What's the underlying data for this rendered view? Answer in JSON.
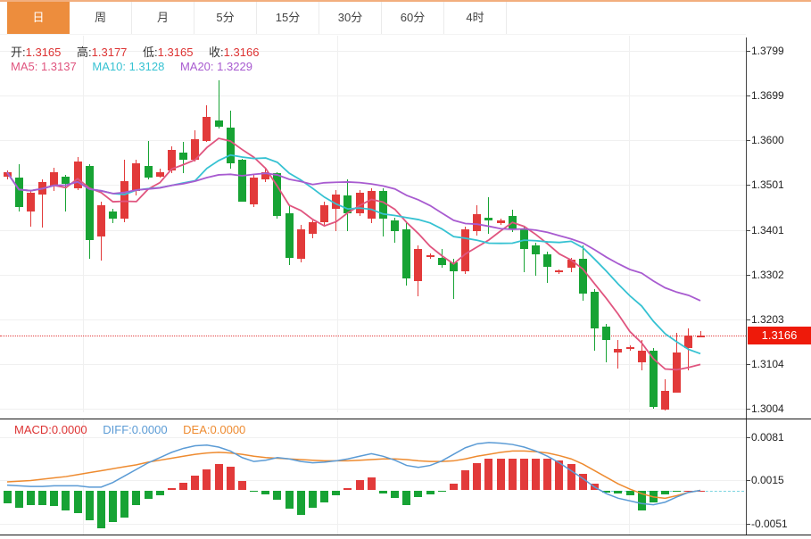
{
  "tabs": {
    "items": [
      {
        "label": "日",
        "selected": true
      },
      {
        "label": "周",
        "selected": false
      },
      {
        "label": "月",
        "selected": false
      },
      {
        "label": "5分",
        "selected": false
      },
      {
        "label": "15分",
        "selected": false
      },
      {
        "label": "30分",
        "selected": false
      },
      {
        "label": "60分",
        "selected": false
      },
      {
        "label": "4时",
        "selected": false
      }
    ]
  },
  "ohlc_bar": {
    "pairs": [
      {
        "label": "开:",
        "value": "1.3165"
      },
      {
        "label": "高:",
        "value": "1.3177"
      },
      {
        "label": "低:",
        "value": "1.3165"
      },
      {
        "label": "收:",
        "value": "1.3166"
      }
    ]
  },
  "ma_bar": {
    "pairs": [
      {
        "label": "MA5:",
        "value": "1.3137"
      },
      {
        "label": "MA10:",
        "value": "1.3128"
      },
      {
        "label": "MA20:",
        "value": "1.3229"
      }
    ]
  },
  "macd_bar": {
    "pairs": [
      {
        "label": "MACD:",
        "value": "0.0000"
      },
      {
        "label": "DIFF:",
        "value": "0.0000"
      },
      {
        "label": "DEA:",
        "value": "0.0000"
      }
    ]
  },
  "price_axis": {
    "ticks": [
      {
        "label": "1.3799",
        "value": 1.3799
      },
      {
        "label": "1.3699",
        "value": 1.3699
      },
      {
        "label": "1.3600",
        "value": 1.36
      },
      {
        "label": "1.3501",
        "value": 1.3501
      },
      {
        "label": "1.3401",
        "value": 1.3401
      },
      {
        "label": "1.3302",
        "value": 1.3302
      },
      {
        "label": "1.3203",
        "value": 1.3203
      },
      {
        "label": "1.3104",
        "value": 1.3104
      },
      {
        "label": "1.3004",
        "value": 1.3004
      }
    ],
    "current": {
      "label": "1.3166",
      "value": 1.3166
    }
  },
  "macd_axis": {
    "ticks": [
      {
        "label": "0.0081",
        "value": 0.0081
      },
      {
        "label": "0.0015",
        "value": 0.0015
      },
      {
        "label": "-0.0051",
        "value": -0.0051
      }
    ]
  },
  "colors": {
    "up": "#e23a3a",
    "down": "#17a334",
    "ohlc_value": "#dd3333",
    "ma5": "#e0557f",
    "ma10": "#36c2d2",
    "ma20": "#a85bd0",
    "diff": "#5b9bd5",
    "dea": "#ee8b30",
    "badge": "#ee1a0a",
    "dotted": "#e34040",
    "tab_active": "#ed8d3d"
  },
  "chart_data": [
    {
      "type": "candlestick",
      "title": "日K线 (daily candlestick, price vs right axis)",
      "legend": [
        "MA5",
        "MA10",
        "MA20"
      ],
      "ylim": [
        1.297,
        1.382
      ],
      "y_ticks_note": "right-side price axis, red dotted line marks last price 1.3166",
      "last_ohlc": {
        "open": 1.3165,
        "high": 1.3177,
        "low": 1.3165,
        "close": 1.3166
      },
      "ma_last": {
        "ma5": 1.3137,
        "ma10": 1.3128,
        "ma20": 1.3229
      },
      "up_color_means": "close >= open (red)",
      "down_color_means": "close < open (green)",
      "candles": [
        [
          1.3519,
          1.3533,
          1.3513,
          1.3529
        ],
        [
          1.3517,
          1.3547,
          1.3443,
          1.3453
        ],
        [
          1.3443,
          1.3487,
          1.3409,
          1.3483
        ],
        [
          1.3479,
          1.3513,
          1.3407,
          1.3507
        ],
        [
          1.3499,
          1.3539,
          1.3487,
          1.3529
        ],
        [
          1.3519,
          1.3523,
          1.3443,
          1.3503
        ],
        [
          1.3493,
          1.3563,
          1.3489,
          1.3553
        ],
        [
          1.3543,
          1.3547,
          1.3337,
          1.3379
        ],
        [
          1.3387,
          1.3463,
          1.3333,
          1.3457
        ],
        [
          1.3443,
          1.3449,
          1.3417,
          1.3427
        ],
        [
          1.3427,
          1.3557,
          1.3419,
          1.3509
        ],
        [
          1.3487,
          1.3557,
          1.3477,
          1.3549
        ],
        [
          1.3543,
          1.3599,
          1.3513,
          1.3517
        ],
        [
          1.3519,
          1.3537,
          1.3517,
          1.3529
        ],
        [
          1.3533,
          1.3587,
          1.3527,
          1.3579
        ],
        [
          1.3573,
          1.3597,
          1.3527,
          1.3557
        ],
        [
          1.3557,
          1.3623,
          1.3553,
          1.3603
        ],
        [
          1.3599,
          1.3679,
          1.3597,
          1.3653
        ],
        [
          1.3645,
          1.3733,
          1.3627,
          1.3631
        ],
        [
          1.3629,
          1.3667,
          1.3537,
          1.3549
        ],
        [
          1.3557,
          1.3559,
          1.3463,
          1.3463
        ],
        [
          1.3457,
          1.3523,
          1.3453,
          1.3517
        ],
        [
          1.3513,
          1.3539,
          1.3507,
          1.3529
        ],
        [
          1.3527,
          1.3529,
          1.3427,
          1.3433
        ],
        [
          1.3439,
          1.3457,
          1.3323,
          1.3339
        ],
        [
          1.3337,
          1.3413,
          1.3329,
          1.3403
        ],
        [
          1.3393,
          1.3423,
          1.3383,
          1.3419
        ],
        [
          1.3419,
          1.3463,
          1.3413,
          1.3457
        ],
        [
          1.3449,
          1.3489,
          1.3399,
          1.3479
        ],
        [
          1.3477,
          1.3513,
          1.3399,
          1.3439
        ],
        [
          1.3439,
          1.3489,
          1.3433,
          1.3483
        ],
        [
          1.3427,
          1.3493,
          1.3417,
          1.3487
        ],
        [
          1.3487,
          1.3493,
          1.3387,
          1.3427
        ],
        [
          1.3423,
          1.3429,
          1.3373,
          1.3399
        ],
        [
          1.3403,
          1.3417,
          1.3277,
          1.3293
        ],
        [
          1.3287,
          1.3367,
          1.3253,
          1.3359
        ],
        [
          1.3341,
          1.3349,
          1.3337,
          1.3345
        ],
        [
          1.3339,
          1.3359,
          1.3317,
          1.3323
        ],
        [
          1.3329,
          1.3337,
          1.3247,
          1.3309
        ],
        [
          1.3309,
          1.3409,
          1.3303,
          1.3403
        ],
        [
          1.3399,
          1.3457,
          1.3389,
          1.3437
        ],
        [
          1.3429,
          1.3473,
          1.3393,
          1.3423
        ],
        [
          1.3417,
          1.3427,
          1.3413,
          1.3423
        ],
        [
          1.3433,
          1.3447,
          1.3397,
          1.3403
        ],
        [
          1.3403,
          1.3409,
          1.3307,
          1.3359
        ],
        [
          1.3367,
          1.3373,
          1.3299,
          1.3347
        ],
        [
          1.3347,
          1.3353,
          1.3283,
          1.3319
        ],
        [
          1.3307,
          1.3313,
          1.3303,
          1.3311
        ],
        [
          1.3317,
          1.3339,
          1.3307,
          1.3335
        ],
        [
          1.3337,
          1.3367,
          1.3243,
          1.3259
        ],
        [
          1.3263,
          1.3269,
          1.3133,
          1.3183
        ],
        [
          1.3187,
          1.3193,
          1.3107,
          1.3157
        ],
        [
          1.3129,
          1.3157,
          1.3093,
          1.3137
        ],
        [
          1.3137,
          1.3145,
          1.3133,
          1.3141
        ],
        [
          1.3107,
          1.3157,
          1.3089,
          1.3133
        ],
        [
          1.3133,
          1.3139,
          1.3003,
          1.3007
        ],
        [
          1.3003,
          1.3069,
          1.3001,
          1.3043
        ],
        [
          1.3039,
          1.3173,
          1.3039,
          1.3129
        ],
        [
          1.3139,
          1.3183,
          1.3089,
          1.3167
        ],
        [
          1.3165,
          1.3177,
          1.3165,
          1.3166
        ]
      ]
    },
    {
      "type": "macd (bar histogram + DIFF/DEA lines)",
      "ylim": [
        -0.006,
        0.009
      ],
      "last": {
        "macd": 0.0,
        "diff": 0.0,
        "dea": 0.0
      },
      "flat_zero_start_index": 51,
      "histogram": [
        -0.002,
        -0.0027,
        -0.0022,
        -0.0022,
        -0.0024,
        -0.0031,
        -0.0035,
        -0.0045,
        -0.0058,
        -0.0048,
        -0.0041,
        -0.0022,
        -0.0013,
        -0.0008,
        0.0004,
        0.0012,
        0.0022,
        0.0032,
        0.004,
        0.0036,
        0.0014,
        -0.0002,
        -0.0006,
        -0.0014,
        -0.0028,
        -0.0038,
        -0.0026,
        -0.0018,
        -0.0008,
        0.0003,
        0.0015,
        0.002,
        -0.0005,
        -0.0012,
        -0.0022,
        -0.001,
        -0.0006,
        -0.0001,
        0.001,
        0.003,
        0.0042,
        0.0048,
        0.0048,
        0.0048,
        0.0048,
        0.0048,
        0.0048,
        0.0046,
        0.004,
        0.0025,
        0.001,
        -0.0003,
        -0.0005,
        -0.0008,
        -0.003,
        -0.0018,
        -0.0006,
        -0.0002,
        0.0,
        0.0
      ],
      "diff": [
        0.0008,
        0.0007,
        0.0006,
        0.0006,
        0.0007,
        0.0007,
        0.0007,
        0.0005,
        0.0005,
        0.0012,
        0.0022,
        0.0032,
        0.0042,
        0.005,
        0.0058,
        0.0064,
        0.0068,
        0.0069,
        0.0066,
        0.006,
        0.005,
        0.0044,
        0.0046,
        0.005,
        0.0048,
        0.0044,
        0.0042,
        0.0043,
        0.0045,
        0.0048,
        0.0052,
        0.0056,
        0.0052,
        0.0046,
        0.0038,
        0.0035,
        0.0038,
        0.0045,
        0.0055,
        0.0065,
        0.0071,
        0.0073,
        0.0072,
        0.007,
        0.0066,
        0.006,
        0.0052,
        0.0042,
        0.003,
        0.0018,
        0.0005,
        -0.0005,
        -0.0012,
        -0.0016,
        -0.002,
        -0.0022,
        -0.0018,
        -0.001,
        -0.0003,
        0.0
      ],
      "dea": [
        0.0013,
        0.0014,
        0.0015,
        0.0017,
        0.0019,
        0.0021,
        0.0024,
        0.0027,
        0.003,
        0.0033,
        0.0036,
        0.0039,
        0.0043,
        0.0046,
        0.0049,
        0.0052,
        0.0055,
        0.0057,
        0.0058,
        0.0057,
        0.0055,
        0.0052,
        0.005,
        0.0049,
        0.0048,
        0.0047,
        0.0046,
        0.0045,
        0.0045,
        0.0045,
        0.0046,
        0.0047,
        0.0048,
        0.0048,
        0.0047,
        0.0045,
        0.0044,
        0.0044,
        0.0045,
        0.0048,
        0.0052,
        0.0055,
        0.0058,
        0.006,
        0.006,
        0.0059,
        0.0057,
        0.0053,
        0.0048,
        0.004,
        0.003,
        0.002,
        0.001,
        0.0002,
        -0.0005,
        -0.001,
        -0.0012,
        -0.0008,
        -0.0003,
        0.0
      ]
    }
  ]
}
